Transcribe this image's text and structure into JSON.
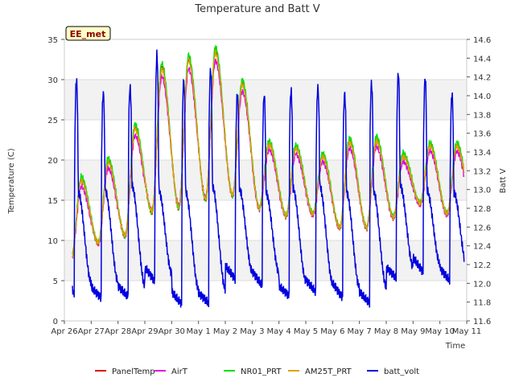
{
  "chart_data": {
    "type": "line",
    "title": "Temperature and Batt V",
    "xlabel": "Time",
    "ylabel_left": "Temperature (C)",
    "ylabel_right": "Batt V",
    "site_label": "EE_met",
    "x_tick_labels": [
      "Apr 26",
      "Apr 27",
      "Apr 28",
      "Apr 29",
      "Apr 30",
      "May 1",
      "May 2",
      "May 3",
      "May 4",
      "May 5",
      "May 6",
      "May 7",
      "May 8",
      "May 9",
      "May 10",
      "May 11"
    ],
    "x_range_days": [
      0,
      15
    ],
    "ylim_left": [
      0,
      35
    ],
    "ylim_right": [
      11.6,
      14.6
    ],
    "y_left_ticks": [
      0,
      5,
      10,
      15,
      20,
      25,
      30,
      35
    ],
    "y_right_ticks": [
      11.6,
      11.8,
      12.0,
      12.2,
      12.4,
      12.6,
      12.8,
      13.0,
      13.2,
      13.4,
      13.6,
      13.8,
      14.0,
      14.2,
      14.4,
      14.6
    ],
    "bands": [
      [
        5,
        10
      ],
      [
        15,
        20
      ],
      [
        25,
        30
      ]
    ],
    "grid": true,
    "legend_position": "bottom",
    "daily_cycle": {
      "days": [
        "Apr 26",
        "Apr 27",
        "Apr 28",
        "Apr 29",
        "Apr 30",
        "May 1",
        "May 2",
        "May 3",
        "May 4",
        "May 5",
        "May 6",
        "May 7",
        "May 8",
        "May 9",
        "May 10"
      ],
      "temp_min": [
        7.8,
        9.6,
        10.5,
        13.5,
        14.0,
        15.0,
        15.5,
        14.0,
        13.0,
        13.2,
        11.5,
        11.5,
        12.8,
        14.5,
        13.2
      ],
      "temp_max": [
        17.5,
        19.8,
        24.0,
        31.5,
        32.5,
        33.5,
        29.5,
        22.0,
        21.5,
        20.5,
        22.3,
        22.5,
        20.5,
        21.8,
        21.8
      ],
      "batt_min": [
        11.9,
        11.85,
        11.8,
        12.0,
        11.8,
        11.75,
        12.0,
        12.0,
        11.85,
        11.85,
        11.85,
        11.8,
        12.0,
        12.1,
        12.05
      ],
      "batt_max": [
        14.2,
        14.05,
        14.05,
        14.45,
        14.2,
        14.25,
        14.0,
        14.05,
        14.05,
        14.05,
        14.05,
        14.15,
        14.2,
        14.2,
        14.05
      ]
    },
    "series": [
      {
        "name": "PanelTemp",
        "color": "#e00000",
        "axis": "left",
        "offset": 0.0,
        "amp_scale": 1.0
      },
      {
        "name": "AirT",
        "color": "#e000e0",
        "axis": "left",
        "offset": -0.4,
        "amp_scale": 0.92
      },
      {
        "name": "NR01_PRT",
        "color": "#00e000",
        "axis": "left",
        "offset": 0.3,
        "amp_scale": 1.03
      },
      {
        "name": "AM25T_PRT",
        "color": "#e0a000",
        "axis": "left",
        "offset": 0.0,
        "amp_scale": 0.98
      },
      {
        "name": "batt_volt",
        "color": "#0000e0",
        "axis": "right",
        "offset": 0.0,
        "amp_scale": 1.0
      }
    ],
    "x_start_fraction": 0.3,
    "x_end_fraction": 14.9
  }
}
